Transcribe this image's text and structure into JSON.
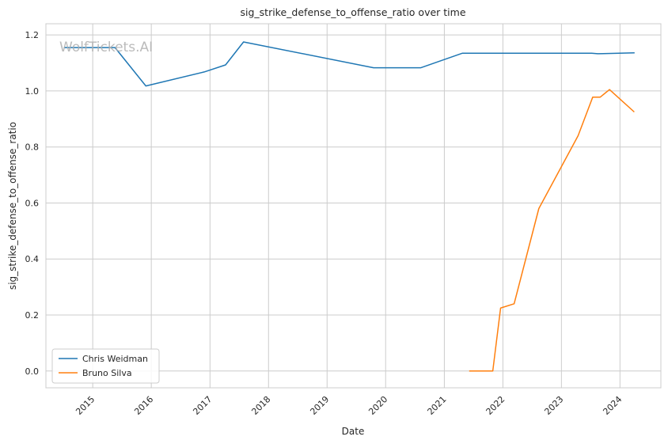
{
  "chart_data": {
    "type": "line",
    "title": "sig_strike_defense_to_offense_ratio over time",
    "xlabel": "Date",
    "ylabel": "sig_strike_defense_to_offense_ratio",
    "watermark": "WolfTickets.AI",
    "x_ticks": [
      "2015",
      "2016",
      "2017",
      "2018",
      "2019",
      "2020",
      "2021",
      "2022",
      "2023",
      "2024"
    ],
    "y_ticks": [
      "0.0",
      "0.2",
      "0.4",
      "0.6",
      "0.8",
      "1.0",
      "1.2"
    ],
    "xlim": [
      "2014-03-15",
      "2024-09-12"
    ],
    "ylim": [
      -0.06,
      1.24
    ],
    "grid": true,
    "legend_position": "lower-left",
    "series": [
      {
        "name": "Chris Weidman",
        "color": "#1f77b4",
        "points": [
          [
            "2014-07-05",
            1.155
          ],
          [
            "2015-05-20",
            1.155
          ],
          [
            "2015-11-28",
            1.018
          ],
          [
            "2016-11-26",
            1.068
          ],
          [
            "2017-04-08",
            1.093
          ],
          [
            "2017-07-29",
            1.175
          ],
          [
            "2019-10-18",
            1.083
          ],
          [
            "2020-08-08",
            1.083
          ],
          [
            "2021-04-24",
            1.135
          ],
          [
            "2023-07-08",
            1.135
          ],
          [
            "2023-08-15",
            1.133
          ],
          [
            "2024-04-01",
            1.136
          ]
        ]
      },
      {
        "name": "Bruno Silva",
        "color": "#ff7f0e",
        "points": [
          [
            "2021-06-05",
            0.0
          ],
          [
            "2021-10-30",
            0.0
          ],
          [
            "2021-12-18",
            0.225
          ],
          [
            "2022-03-12",
            0.24
          ],
          [
            "2022-08-13",
            0.58
          ],
          [
            "2023-04-15",
            0.84
          ],
          [
            "2023-07-15",
            0.978
          ],
          [
            "2023-08-31",
            0.978
          ],
          [
            "2023-10-28",
            1.005
          ],
          [
            "2024-03-30",
            0.925
          ]
        ]
      }
    ]
  }
}
